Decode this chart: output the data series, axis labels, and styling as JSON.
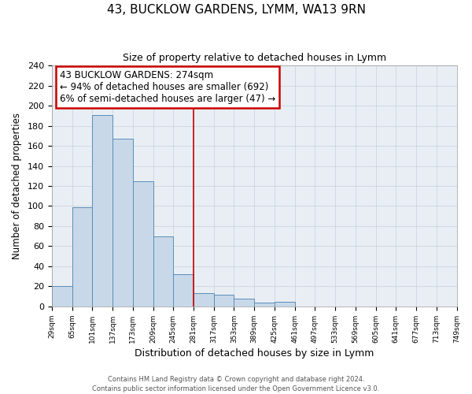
{
  "title": "43, BUCKLOW GARDENS, LYMM, WA13 9RN",
  "subtitle": "Size of property relative to detached houses in Lymm",
  "xlabel": "Distribution of detached houses by size in Lymm",
  "ylabel": "Number of detached properties",
  "footer1": "Contains HM Land Registry data © Crown copyright and database right 2024.",
  "footer2": "Contains public sector information licensed under the Open Government Licence v3.0.",
  "bin_labels": [
    "29sqm",
    "65sqm",
    "101sqm",
    "137sqm",
    "173sqm",
    "209sqm",
    "245sqm",
    "281sqm",
    "317sqm",
    "353sqm",
    "389sqm",
    "425sqm",
    "461sqm",
    "497sqm",
    "533sqm",
    "569sqm",
    "605sqm",
    "641sqm",
    "677sqm",
    "713sqm",
    "749sqm"
  ],
  "bar_heights": [
    20,
    99,
    191,
    167,
    125,
    70,
    32,
    13,
    12,
    8,
    4,
    5,
    0,
    0,
    0,
    0,
    0,
    0,
    0,
    0
  ],
  "bar_color": "#c8d8e8",
  "bar_edge_color": "#5b8db8",
  "vline_x": 7,
  "vline_color": "#cc0000",
  "ylim": [
    0,
    240
  ],
  "yticks": [
    0,
    20,
    40,
    60,
    80,
    100,
    120,
    140,
    160,
    180,
    200,
    220,
    240
  ],
  "annotation_title": "43 BUCKLOW GARDENS: 274sqm",
  "annotation_line1": "← 94% of detached houses are smaller (692)",
  "annotation_line2": "6% of semi-detached houses are larger (47) →",
  "annotation_box_color": "#cc0000",
  "grid_color": "#c8d0d8",
  "background_color": "#e8eef4"
}
